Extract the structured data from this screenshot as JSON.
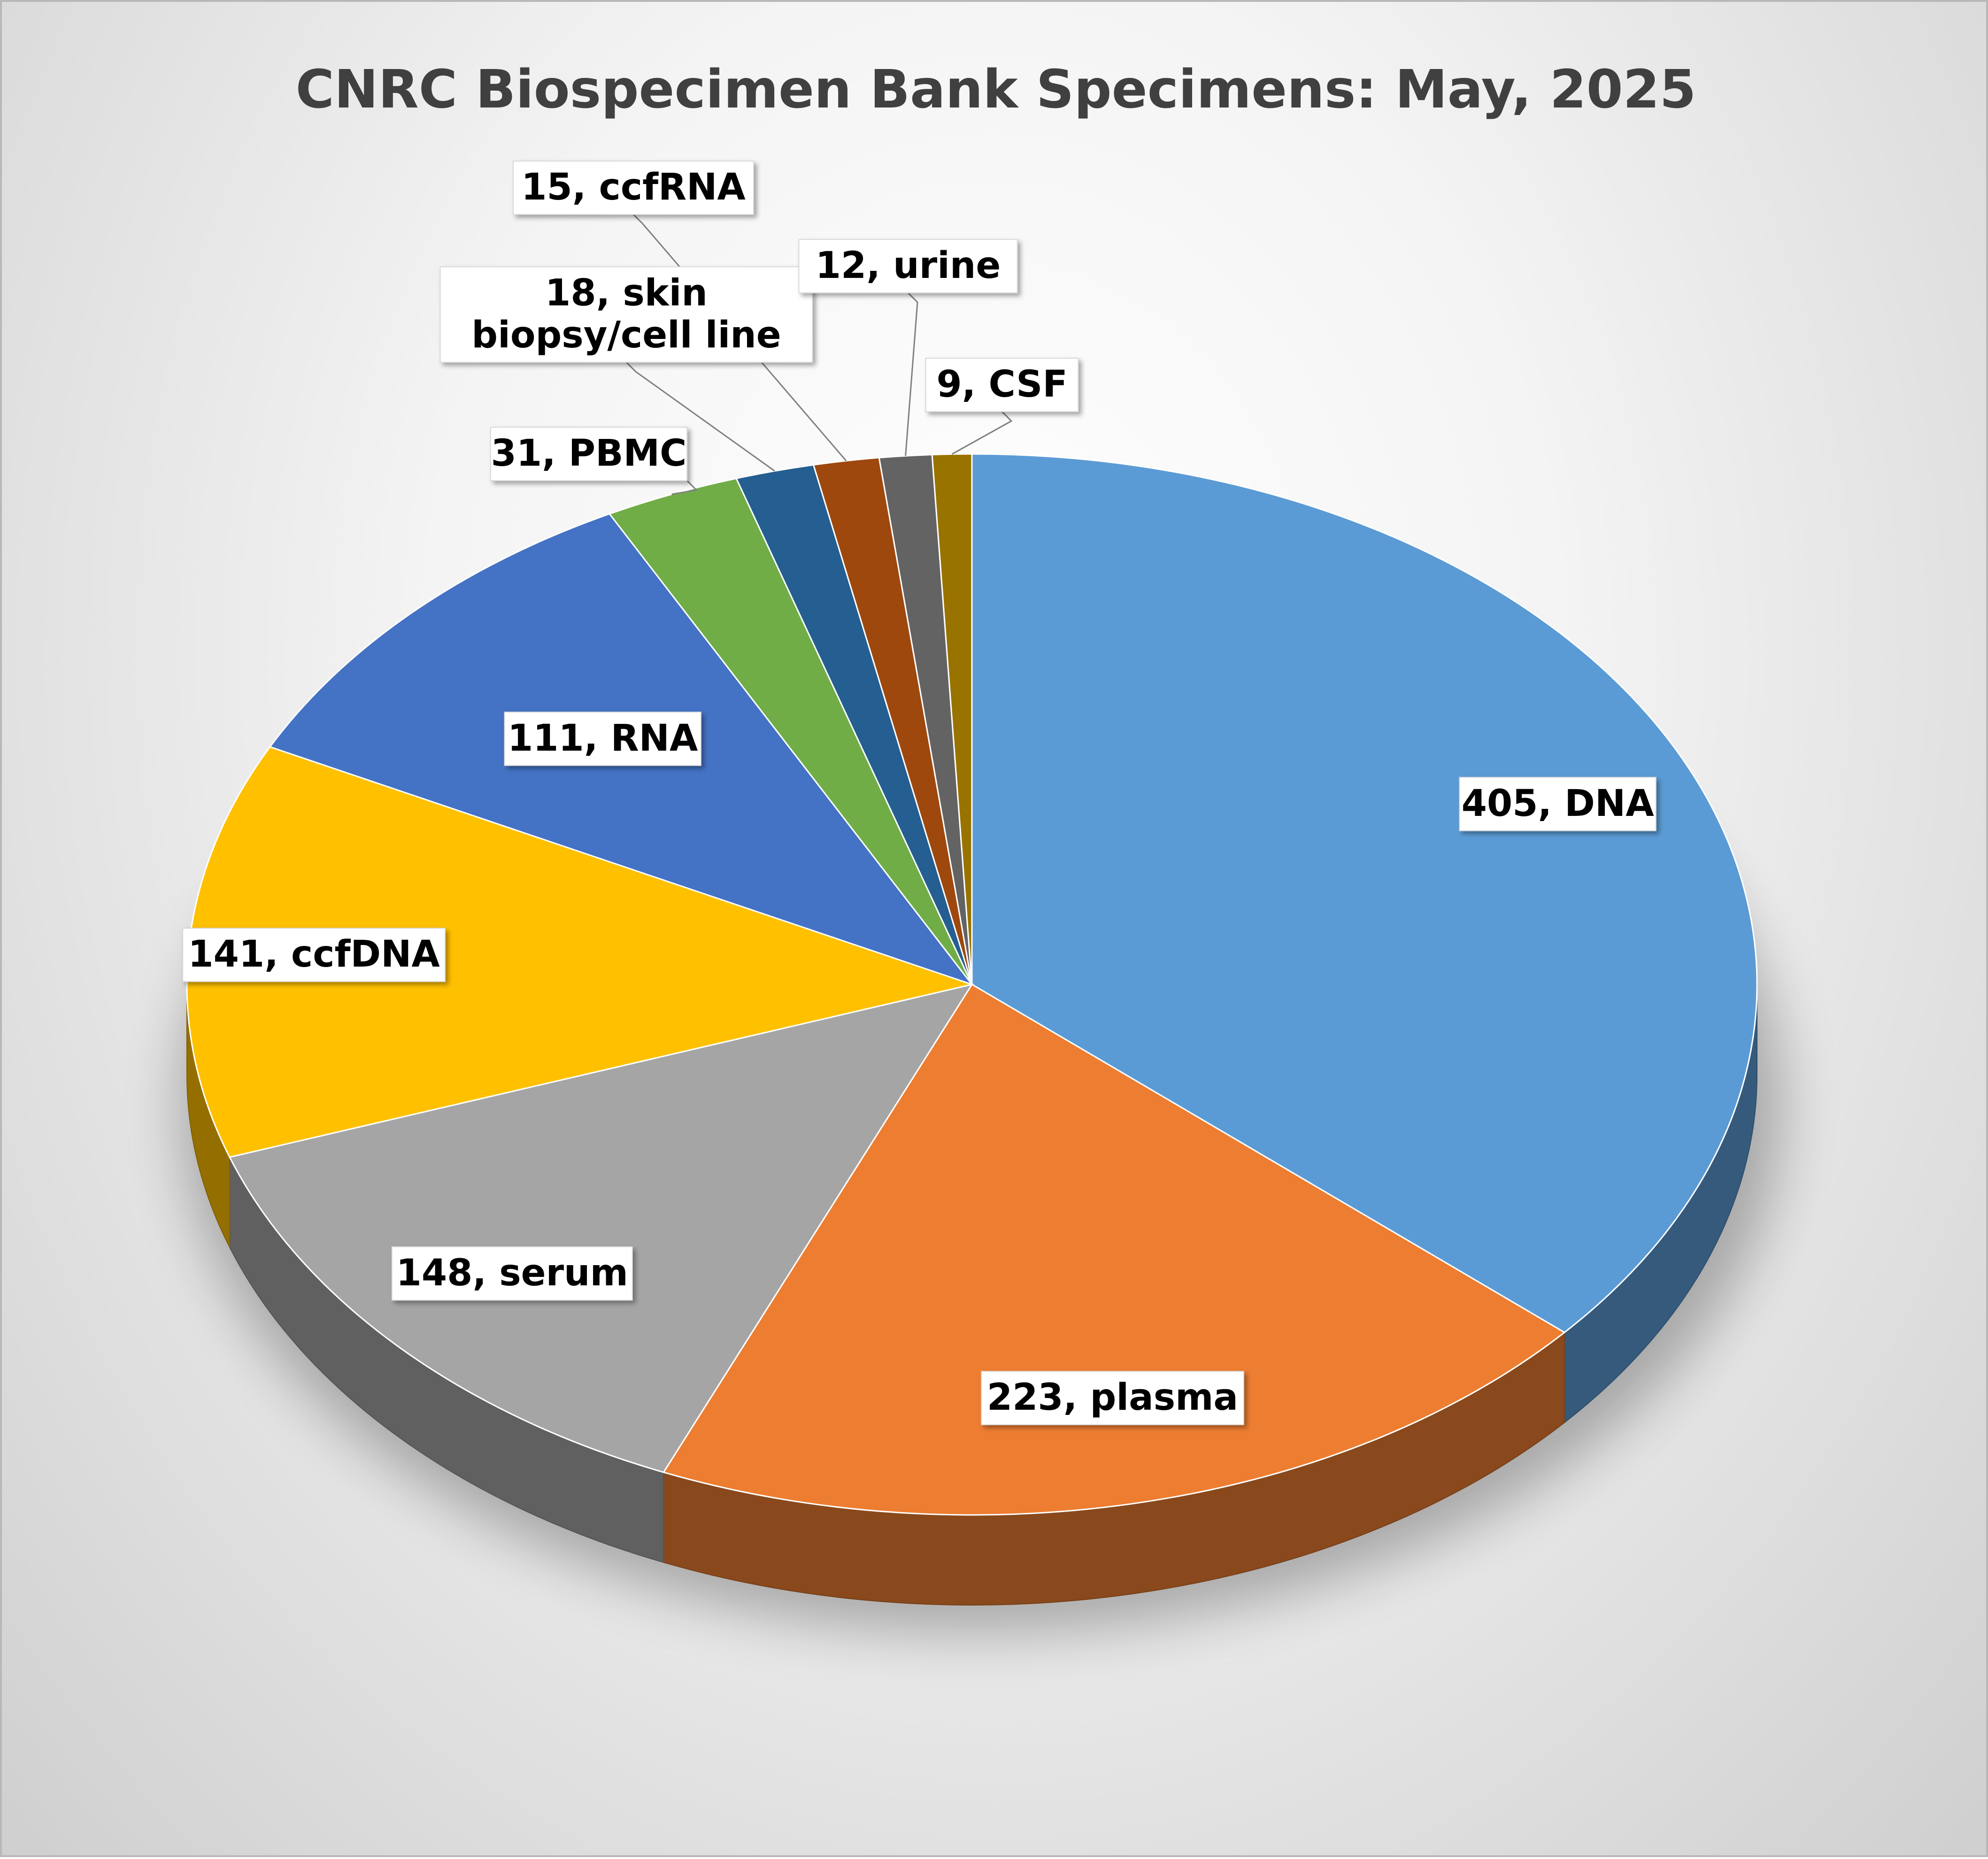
{
  "chart_data": {
    "type": "pie",
    "title": "CNRC Biospecimen Bank Specimens: May, 2025",
    "slices": [
      {
        "name": "DNA",
        "value": 405,
        "label": "405, DNA",
        "color": "#5B9BD5"
      },
      {
        "name": "plasma",
        "value": 223,
        "label": "223, plasma",
        "color": "#ED7D31"
      },
      {
        "name": "serum",
        "value": 148,
        "label": "148, serum",
        "color": "#A5A5A5"
      },
      {
        "name": "ccfDNA",
        "value": 141,
        "label": "141, ccfDNA",
        "color": "#FFC000"
      },
      {
        "name": "RNA",
        "value": 111,
        "label": "111, RNA",
        "color": "#4472C4"
      },
      {
        "name": "PBMC",
        "value": 31,
        "label": "31, PBMC",
        "color": "#70AD47"
      },
      {
        "name": "skin biopsy/cell line",
        "value": 18,
        "label": "18, skin biopsy/cell line",
        "label_lines": [
          "18, skin",
          "biopsy/cell line"
        ],
        "color": "#255E91"
      },
      {
        "name": "ccfRNA",
        "value": 15,
        "label": "15, ccfRNA",
        "color": "#9E480E"
      },
      {
        "name": "urine",
        "value": 12,
        "label": "12, urine",
        "color": "#636363"
      },
      {
        "name": "CSF",
        "value": 9,
        "label": "9, CSF",
        "color": "#997300"
      }
    ],
    "legend": "none",
    "style": "3d-pie"
  }
}
